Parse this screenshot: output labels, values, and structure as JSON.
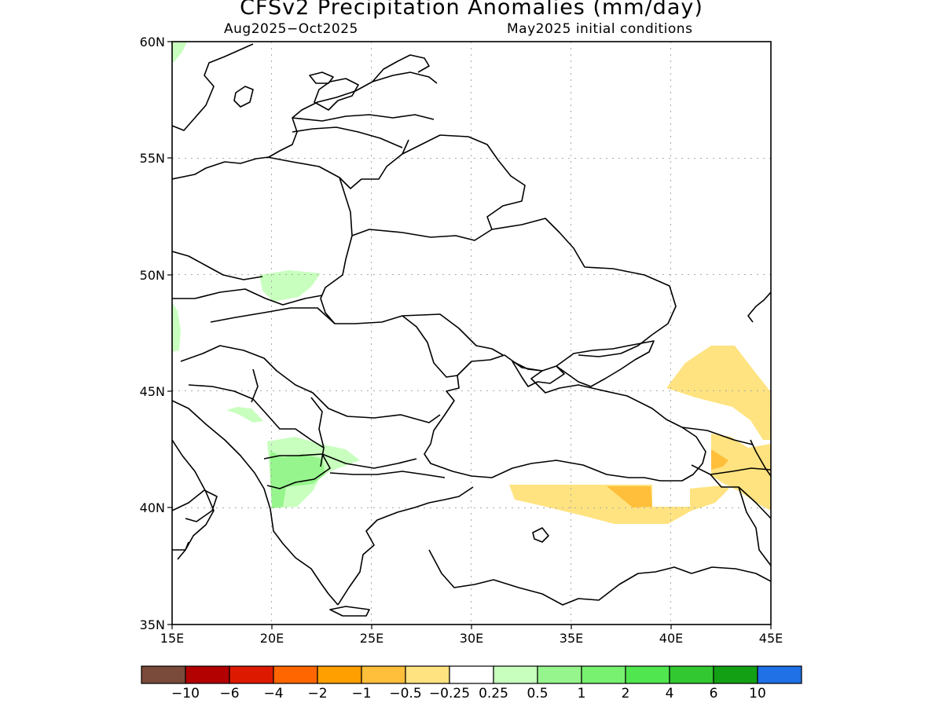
{
  "header": {
    "title": "CFSv2 Precipitation Anomalies (mm/day)",
    "period": "Aug2025−Oct2025",
    "init": "May2025 initial conditions"
  },
  "axes": {
    "lat_labels": [
      "60N",
      "55N",
      "50N",
      "45N",
      "40N",
      "35N"
    ],
    "lon_labels": [
      "15E",
      "20E",
      "25E",
      "30E",
      "35E",
      "40E",
      "45E"
    ]
  },
  "map_extent": {
    "lon_min": 15,
    "lon_max": 45,
    "lat_min": 35,
    "lat_max": 60
  },
  "colorbar": {
    "colors": [
      "#7a4a3a",
      "#b30000",
      "#dd1a00",
      "#ff6600",
      "#ff9f00",
      "#ffbf3a",
      "#ffe380",
      "#ffffff",
      "#c8ffbe",
      "#96f58c",
      "#78f070",
      "#50e650",
      "#32c832",
      "#14a014",
      "#2070e6"
    ],
    "labels": [
      "−10",
      "−6",
      "−4",
      "−2",
      "−1",
      "−0.5",
      "−0.25",
      "0.25",
      "0.5",
      "1",
      "2",
      "4",
      "6",
      "10"
    ]
  },
  "anomaly_colors": {
    "light_green": "#c8ffbe",
    "green": "#96f58c",
    "light_yellow": "#ffe380",
    "orange": "#ffbf3a"
  }
}
